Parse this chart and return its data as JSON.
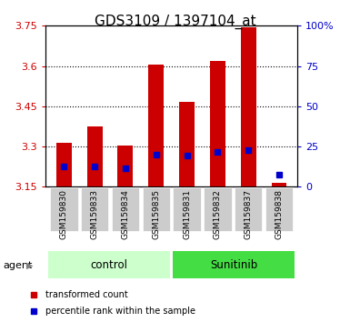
{
  "title": "GDS3109 / 1397104_at",
  "samples": [
    "GSM159830",
    "GSM159833",
    "GSM159834",
    "GSM159835",
    "GSM159831",
    "GSM159832",
    "GSM159837",
    "GSM159838"
  ],
  "bar_heights": [
    3.315,
    3.375,
    3.305,
    3.605,
    3.465,
    3.62,
    3.745,
    3.165
  ],
  "percentile_values": [
    3.225,
    3.225,
    3.22,
    3.27,
    3.265,
    3.28,
    3.285,
    3.195
  ],
  "y_min": 3.15,
  "y_max": 3.75,
  "y_ticks": [
    3.15,
    3.3,
    3.45,
    3.6,
    3.75
  ],
  "y_right_ticks": [
    0,
    25,
    50,
    75,
    100
  ],
  "bar_color": "#cc0000",
  "percentile_color": "#0000cc",
  "bar_width": 0.5,
  "groups": [
    {
      "label": "control",
      "samples": [
        "GSM159830",
        "GSM159833",
        "GSM159834",
        "GSM159835"
      ],
      "color": "#ccffcc"
    },
    {
      "label": "Sunitinib",
      "samples": [
        "GSM159831",
        "GSM159832",
        "GSM159837",
        "GSM159838"
      ],
      "color": "#66ff66"
    }
  ],
  "legend_items": [
    {
      "label": "transformed count",
      "color": "#cc0000"
    },
    {
      "label": "percentile rank within the sample",
      "color": "#0000cc"
    }
  ],
  "agent_label": "agent",
  "xlabel_color": "#cc0000",
  "right_axis_color": "#0000cc",
  "background_color": "#ffffff",
  "plot_bg_color": "#ffffff",
  "grid_color": "#000000",
  "tick_label_bg": "#dddddd"
}
